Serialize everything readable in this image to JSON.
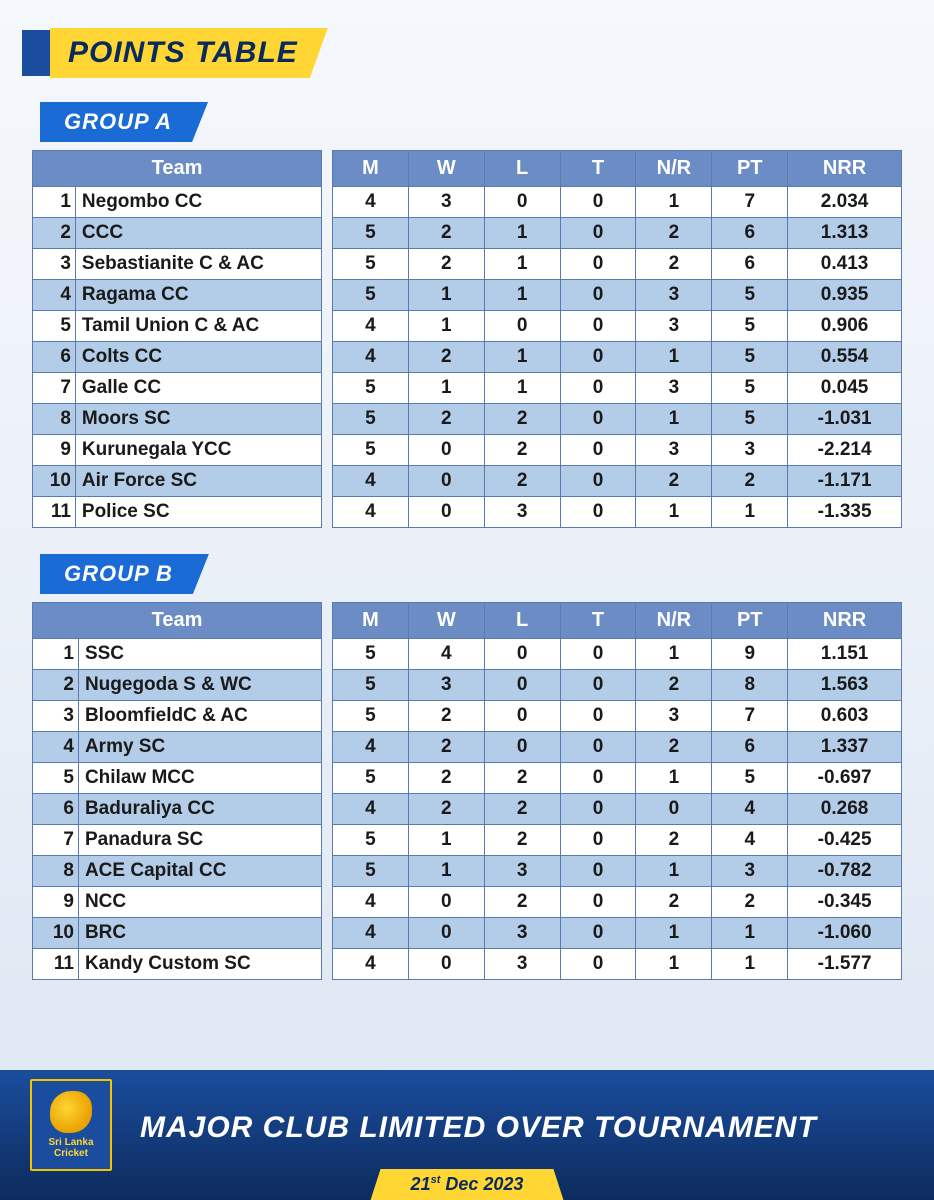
{
  "title": "POINTS TABLE",
  "footer": {
    "tournament": "MAJOR CLUB LIMITED OVER TOURNAMENT",
    "date_prefix": "21",
    "date_ord": "st",
    "date_rest": " Dec 2023",
    "logo_line1": "Sri Lanka",
    "logo_line2": "Cricket"
  },
  "columns": {
    "team": "Team",
    "m": "M",
    "w": "W",
    "l": "L",
    "t": "T",
    "nr": "N/R",
    "pt": "PT",
    "nrr": "NRR"
  },
  "groups": [
    {
      "label": "GROUP A",
      "rows": [
        {
          "rank": "1",
          "team": "Negombo CC",
          "m": "4",
          "w": "3",
          "l": "0",
          "t": "0",
          "nr": "1",
          "pt": "7",
          "nrr": "2.034"
        },
        {
          "rank": "2",
          "team": "CCC",
          "m": "5",
          "w": "2",
          "l": "1",
          "t": "0",
          "nr": "2",
          "pt": "6",
          "nrr": "1.313"
        },
        {
          "rank": "3",
          "team": "Sebastianite C & AC",
          "m": "5",
          "w": "2",
          "l": "1",
          "t": "0",
          "nr": "2",
          "pt": "6",
          "nrr": "0.413"
        },
        {
          "rank": "4",
          "team": "Ragama CC",
          "m": "5",
          "w": "1",
          "l": "1",
          "t": "0",
          "nr": "3",
          "pt": "5",
          "nrr": "0.935"
        },
        {
          "rank": "5",
          "team": "Tamil Union C & AC",
          "m": "4",
          "w": "1",
          "l": "0",
          "t": "0",
          "nr": "3",
          "pt": "5",
          "nrr": "0.906"
        },
        {
          "rank": "6",
          "team": "Colts CC",
          "m": "4",
          "w": "2",
          "l": "1",
          "t": "0",
          "nr": "1",
          "pt": "5",
          "nrr": "0.554"
        },
        {
          "rank": "7",
          "team": "Galle CC",
          "m": "5",
          "w": "1",
          "l": "1",
          "t": "0",
          "nr": "3",
          "pt": "5",
          "nrr": "0.045"
        },
        {
          "rank": "8",
          "team": "Moors SC",
          "m": "5",
          "w": "2",
          "l": "2",
          "t": "0",
          "nr": "1",
          "pt": "5",
          "nrr": "-1.031"
        },
        {
          "rank": "9",
          "team": "Kurunegala YCC",
          "m": "5",
          "w": "0",
          "l": "2",
          "t": "0",
          "nr": "3",
          "pt": "3",
          "nrr": "-2.214"
        },
        {
          "rank": "10",
          "team": "Air Force SC",
          "m": "4",
          "w": "0",
          "l": "2",
          "t": "0",
          "nr": "2",
          "pt": "2",
          "nrr": "-1.171"
        },
        {
          "rank": "11",
          "team": "Police SC",
          "m": "4",
          "w": "0",
          "l": "3",
          "t": "0",
          "nr": "1",
          "pt": "1",
          "nrr": "-1.335"
        }
      ]
    },
    {
      "label": "GROUP B",
      "rows": [
        {
          "rank": "1",
          "team": "SSC",
          "m": "5",
          "w": "4",
          "l": "0",
          "t": "0",
          "nr": "1",
          "pt": "9",
          "nrr": "1.151"
        },
        {
          "rank": "2",
          "team": "Nugegoda S & WC",
          "m": "5",
          "w": "3",
          "l": "0",
          "t": "0",
          "nr": "2",
          "pt": "8",
          "nrr": "1.563"
        },
        {
          "rank": "3",
          "team": "BloomfieldC & AC",
          "m": "5",
          "w": "2",
          "l": "0",
          "t": "0",
          "nr": "3",
          "pt": "7",
          "nrr": "0.603"
        },
        {
          "rank": "4",
          "team": "Army SC",
          "m": "4",
          "w": "2",
          "l": "0",
          "t": "0",
          "nr": "2",
          "pt": "6",
          "nrr": "1.337"
        },
        {
          "rank": "5",
          "team": "Chilaw MCC",
          "m": "5",
          "w": "2",
          "l": "2",
          "t": "0",
          "nr": "1",
          "pt": "5",
          "nrr": "-0.697"
        },
        {
          "rank": "6",
          "team": "Baduraliya CC",
          "m": "4",
          "w": "2",
          "l": "2",
          "t": "0",
          "nr": "0",
          "pt": "4",
          "nrr": "0.268"
        },
        {
          "rank": "7",
          "team": "Panadura SC",
          "m": "5",
          "w": "1",
          "l": "2",
          "t": "0",
          "nr": "2",
          "pt": "4",
          "nrr": "-0.425"
        },
        {
          "rank": "8",
          "team": "ACE Capital CC",
          "m": "5",
          "w": "1",
          "l": "3",
          "t": "0",
          "nr": "1",
          "pt": "3",
          "nrr": "-0.782"
        },
        {
          "rank": "9",
          "team": "NCC",
          "m": "4",
          "w": "0",
          "l": "2",
          "t": "0",
          "nr": "2",
          "pt": "2",
          "nrr": "-0.345"
        },
        {
          "rank": "10",
          "team": "BRC",
          "m": "4",
          "w": "0",
          "l": "3",
          "t": "0",
          "nr": "1",
          "pt": "1",
          "nrr": "-1.060"
        },
        {
          "rank": "11",
          "team": "Kandy Custom SC",
          "m": "4",
          "w": "0",
          "l": "3",
          "t": "0",
          "nr": "1",
          "pt": "1",
          "nrr": "-1.577"
        }
      ]
    }
  ],
  "colors": {
    "header_bg": "#6b8cc4",
    "row_even_bg": "#b3cce8",
    "row_odd_bg": "#ffffff",
    "border": "#5a7ab0",
    "accent_yellow": "#ffd633",
    "accent_blue": "#1a4d9e",
    "tab_blue": "#1a6bd6"
  }
}
